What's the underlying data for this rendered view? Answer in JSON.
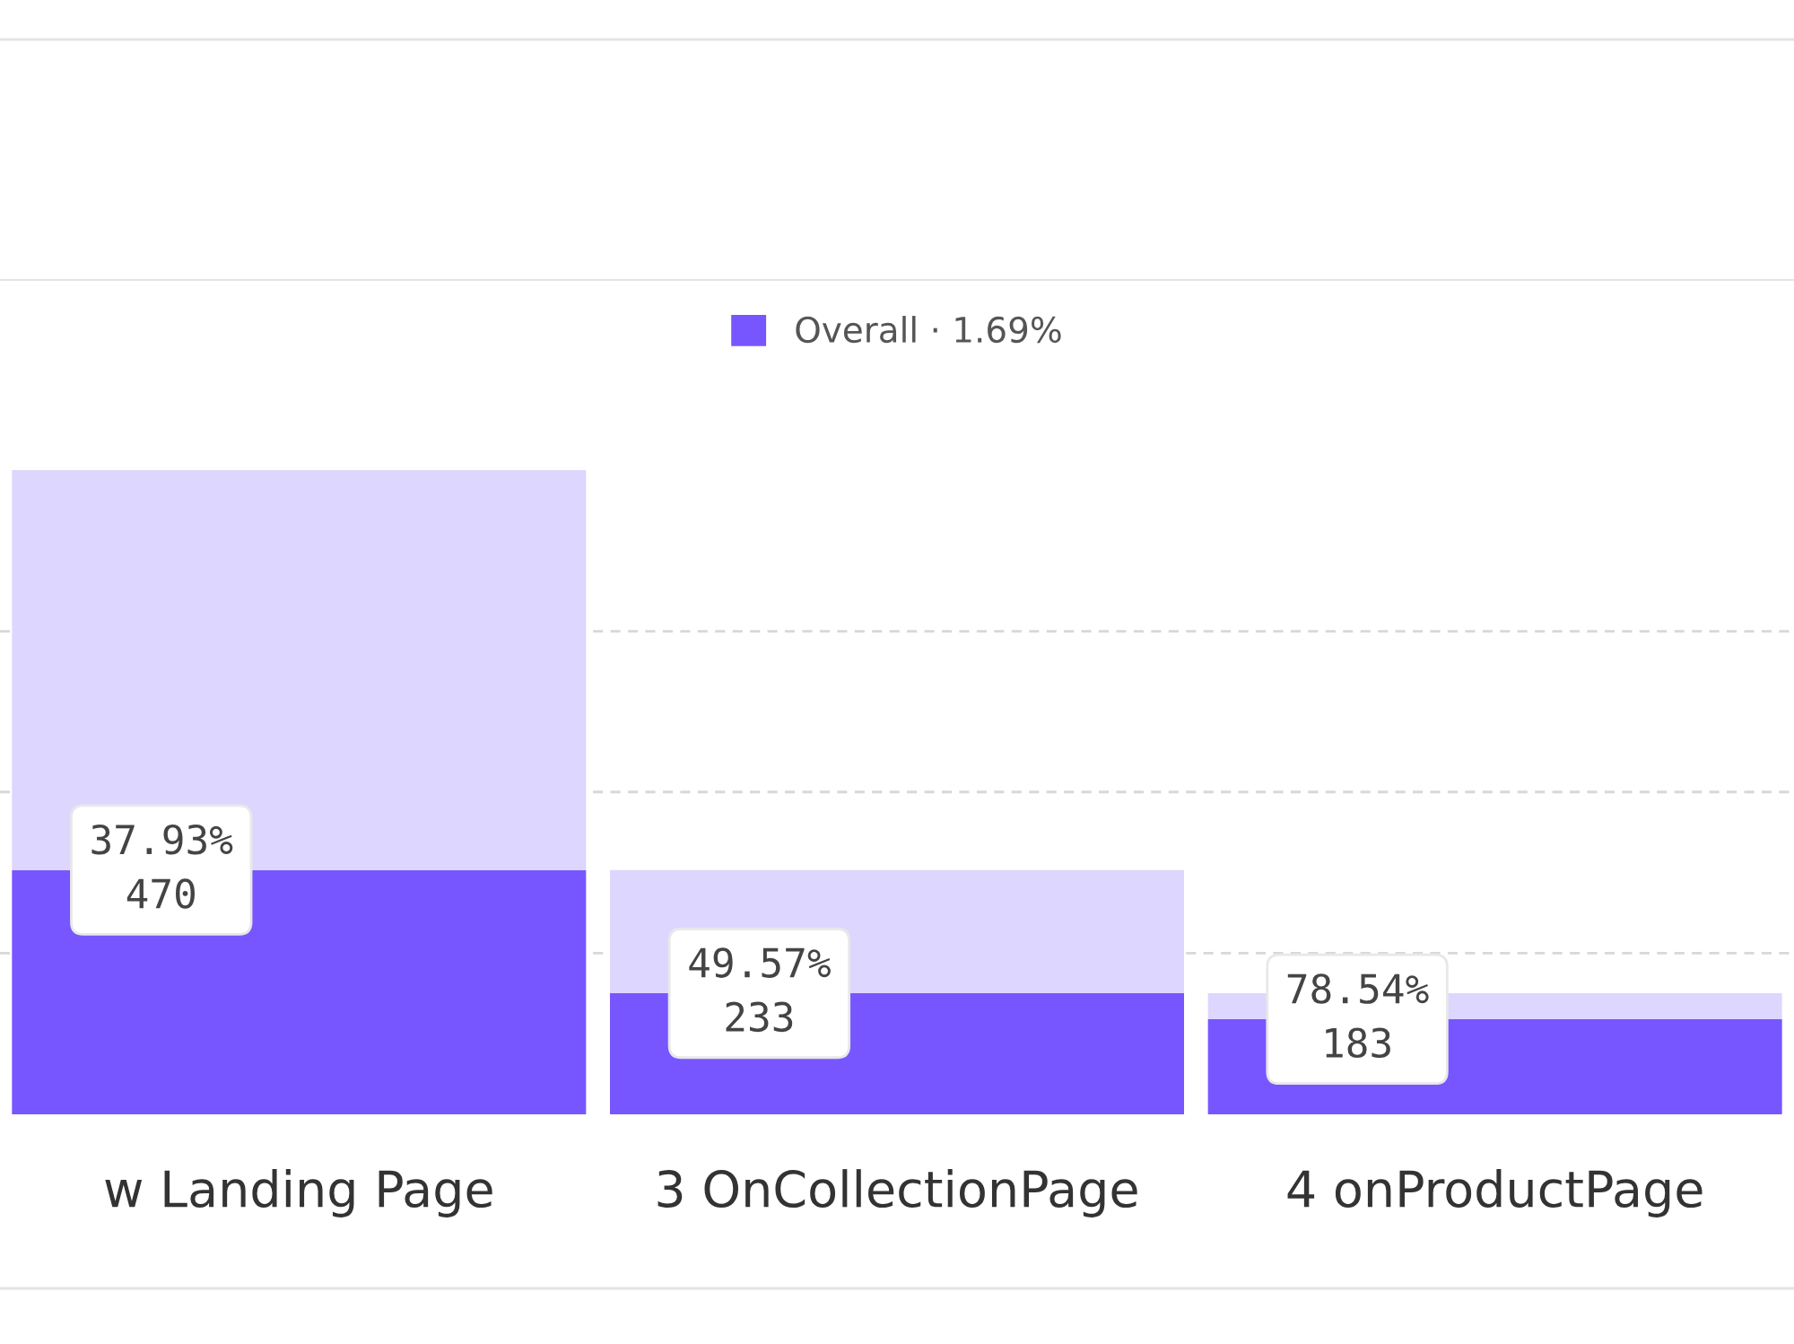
{
  "chart_data": {
    "type": "bar",
    "categories": [
      "w Landing Page",
      "3 OnCollectionPage",
      "4 onProductPage"
    ],
    "series": [
      {
        "name": "Overall · 1.69%",
        "color": "#7856ff",
        "values": [
          470,
          233,
          183
        ],
        "value_labels": [
          "37.93%\n470",
          "49.57%\n233",
          "78.54%\n183"
        ]
      },
      {
        "color": "#ddd6ff",
        "values": [
          769,
          237,
          50
        ]
      }
    ],
    "stacked": true,
    "ylim": [
      0,
      1605
    ],
    "yticks": [
      {
        "value": 310,
        "label": null
      },
      {
        "value": 620,
        "label": null
      },
      {
        "value": 929,
        "label": null
      }
    ],
    "grid": "y",
    "tick_labels": "x",
    "legend": "top"
  }
}
